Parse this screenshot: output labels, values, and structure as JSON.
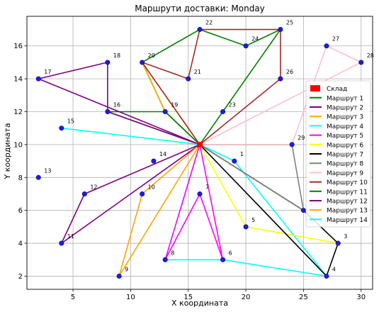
{
  "chart_data": {
    "type": "line",
    "title": "Маршрути доставки: Monday",
    "xlabel": "X координата",
    "ylabel": "Y координата",
    "xlim": [
      1,
      31
    ],
    "ylim": [
      1.2,
      17.8
    ],
    "xticks": [
      5,
      10,
      15,
      20,
      25,
      30
    ],
    "yticks": [
      2,
      4,
      6,
      8,
      10,
      12,
      14,
      16
    ],
    "grid": true,
    "legend_position": "right",
    "depot": {
      "label": "Склад",
      "x": 16,
      "y": 10,
      "color": "#ff0000"
    },
    "points": [
      {
        "id": "1",
        "x": 19,
        "y": 9
      },
      {
        "id": "2",
        "x": 25,
        "y": 6
      },
      {
        "id": "3",
        "x": 28,
        "y": 4
      },
      {
        "id": "4",
        "x": 27,
        "y": 2
      },
      {
        "id": "5",
        "x": 20,
        "y": 5
      },
      {
        "id": "6",
        "x": 18,
        "y": 3
      },
      {
        "id": "7",
        "x": 16,
        "y": 7
      },
      {
        "id": "8",
        "x": 13,
        "y": 3
      },
      {
        "id": "9",
        "x": 9,
        "y": 2
      },
      {
        "id": "10",
        "x": 11,
        "y": 7
      },
      {
        "id": "11",
        "x": 4,
        "y": 4
      },
      {
        "id": "12",
        "x": 6,
        "y": 7
      },
      {
        "id": "13",
        "x": 2,
        "y": 8
      },
      {
        "id": "14",
        "x": 12,
        "y": 9
      },
      {
        "id": "15",
        "x": 4,
        "y": 11
      },
      {
        "id": "16",
        "x": 8,
        "y": 12
      },
      {
        "id": "17",
        "x": 2,
        "y": 14
      },
      {
        "id": "18",
        "x": 8,
        "y": 15
      },
      {
        "id": "19",
        "x": 13,
        "y": 12
      },
      {
        "id": "20",
        "x": 11,
        "y": 15
      },
      {
        "id": "21",
        "x": 15,
        "y": 14
      },
      {
        "id": "22",
        "x": 16,
        "y": 17
      },
      {
        "id": "23",
        "x": 18,
        "y": 12
      },
      {
        "id": "24",
        "x": 20,
        "y": 16
      },
      {
        "id": "25",
        "x": 23,
        "y": 17
      },
      {
        "id": "26",
        "x": 23,
        "y": 14
      },
      {
        "id": "27",
        "x": 27,
        "y": 16
      },
      {
        "id": "28",
        "x": 30,
        "y": 15
      },
      {
        "id": "29",
        "x": 24,
        "y": 10
      }
    ],
    "series": [
      {
        "name": "Маршрут 1",
        "color": "#008000",
        "route": [
          "23",
          "25",
          "24",
          "22",
          "20",
          "19"
        ]
      },
      {
        "name": "Маршрут 2",
        "color": "#800080",
        "route": [
          "12",
          "11"
        ]
      },
      {
        "name": "Маршрут 3",
        "color": "#ffa500",
        "route": [
          "20",
          "19"
        ]
      },
      {
        "name": "Маршрут 4",
        "color": "#00ffff",
        "route": [
          "1",
          "4",
          "6",
          "8"
        ]
      },
      {
        "name": "Маршрут 5",
        "color": "#ff00ff",
        "route": [
          "8",
          "7",
          "6"
        ]
      },
      {
        "name": "Маршрут 6",
        "color": "#ffff00",
        "route": [
          "5",
          "3",
          "2"
        ]
      },
      {
        "name": "Маршрут 7",
        "color": "#000000",
        "route": [
          "4",
          "3",
          "2"
        ]
      },
      {
        "name": "Маршрут 8",
        "color": "#808080",
        "route": [
          "29",
          "2"
        ]
      },
      {
        "name": "Маршрут 9",
        "color": "#ffc0cb",
        "route": [
          "29",
          "27",
          "28"
        ]
      },
      {
        "name": "Маршрут 10",
        "color": "#a52a2a",
        "route": [
          "26",
          "25",
          "22",
          "21",
          "20"
        ]
      },
      {
        "name": "Маршрут 11",
        "color": "#008000",
        "route": [
          "16",
          "19"
        ]
      },
      {
        "name": "Маршрут 12",
        "color": "#800080",
        "route": [
          "17",
          "18",
          "16"
        ]
      },
      {
        "name": "Маршрут 13",
        "color": "#ffa500",
        "route": [
          "10",
          "9"
        ]
      },
      {
        "name": "Маршрут 14",
        "color": "#00ffff",
        "route": [
          "15"
        ]
      }
    ]
  }
}
